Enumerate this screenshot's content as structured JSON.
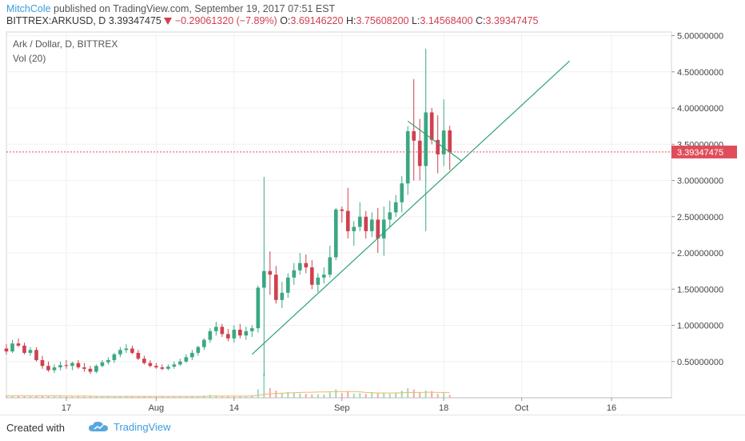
{
  "header": {
    "author": "MitchCole",
    "published_text": " published on TradingView.com, September 19, 2017 07:51 EST"
  },
  "ohlc_bar": {
    "symbol": "BITTREX:ARKUSD, D",
    "last": "3.39347475",
    "change_icon": "down-triangle-icon",
    "change": "−0.29061320 (−7.89%)",
    "o_label": "O:",
    "o": "3.69146220",
    "h_label": "H:",
    "h": "3.75608200",
    "l_label": "L:",
    "l": "3.14568400",
    "c_label": "C:",
    "c": "3.39347475"
  },
  "legend": {
    "title": "Ark / Dollar, D, BITTREX",
    "volume": "Vol (20)"
  },
  "footer": {
    "created_with": "Created with",
    "brand": "TradingView",
    "brand_icon": "tradingview-cloud-icon"
  },
  "colors": {
    "up": "#3aa882",
    "down": "#d0404f",
    "trend": "#2ea07a",
    "price_line": "#e04d5a",
    "vol_ma": "#f0b860",
    "grid": "#f0f0f0"
  },
  "chart_data": {
    "type": "candlestick",
    "title": "Ark / Dollar, D, BITTREX",
    "ylim": [
      0.0,
      5.05
    ],
    "yticks": [
      "5.00000000",
      "4.50000000",
      "4.00000000",
      "3.50000000",
      "3.00000000",
      "2.50000000",
      "2.00000000",
      "1.50000000",
      "1.00000000",
      "0.50000000"
    ],
    "ytick_values": [
      5.0,
      4.5,
      4.0,
      3.5,
      3.0,
      2.5,
      2.0,
      1.5,
      1.0,
      0.5
    ],
    "xticks": [
      {
        "label": "17",
        "date": "2017-07-17"
      },
      {
        "label": "Aug",
        "date": "2017-08-01"
      },
      {
        "label": "14",
        "date": "2017-08-14"
      },
      {
        "label": "Sep",
        "date": "2017-09-01"
      },
      {
        "label": "18",
        "date": "2017-09-18"
      },
      {
        "label": "Oct",
        "date": "2017-10-01"
      },
      {
        "label": "16",
        "date": "2017-10-16"
      }
    ],
    "x_range": [
      "2017-07-07",
      "2017-10-26"
    ],
    "last_price": 3.39347475,
    "last_price_label": "3.39347475",
    "candles": [
      {
        "d": "2017-07-07",
        "o": 0.68,
        "h": 0.74,
        "l": 0.6,
        "c": 0.64
      },
      {
        "d": "2017-07-08",
        "o": 0.64,
        "h": 0.8,
        "l": 0.62,
        "c": 0.75
      },
      {
        "d": "2017-07-09",
        "o": 0.75,
        "h": 0.82,
        "l": 0.7,
        "c": 0.72
      },
      {
        "d": "2017-07-10",
        "o": 0.72,
        "h": 0.76,
        "l": 0.6,
        "c": 0.62
      },
      {
        "d": "2017-07-11",
        "o": 0.62,
        "h": 0.7,
        "l": 0.58,
        "c": 0.66
      },
      {
        "d": "2017-07-12",
        "o": 0.66,
        "h": 0.7,
        "l": 0.5,
        "c": 0.52
      },
      {
        "d": "2017-07-13",
        "o": 0.52,
        "h": 0.58,
        "l": 0.4,
        "c": 0.44
      },
      {
        "d": "2017-07-14",
        "o": 0.44,
        "h": 0.5,
        "l": 0.36,
        "c": 0.38
      },
      {
        "d": "2017-07-15",
        "o": 0.38,
        "h": 0.46,
        "l": 0.34,
        "c": 0.42
      },
      {
        "d": "2017-07-16",
        "o": 0.42,
        "h": 0.5,
        "l": 0.38,
        "c": 0.45
      },
      {
        "d": "2017-07-17",
        "o": 0.45,
        "h": 0.52,
        "l": 0.4,
        "c": 0.44
      },
      {
        "d": "2017-07-18",
        "o": 0.44,
        "h": 0.5,
        "l": 0.38,
        "c": 0.48
      },
      {
        "d": "2017-07-19",
        "o": 0.48,
        "h": 0.52,
        "l": 0.4,
        "c": 0.42
      },
      {
        "d": "2017-07-20",
        "o": 0.42,
        "h": 0.48,
        "l": 0.36,
        "c": 0.4
      },
      {
        "d": "2017-07-21",
        "o": 0.4,
        "h": 0.44,
        "l": 0.33,
        "c": 0.36
      },
      {
        "d": "2017-07-22",
        "o": 0.36,
        "h": 0.46,
        "l": 0.34,
        "c": 0.44
      },
      {
        "d": "2017-07-23",
        "o": 0.44,
        "h": 0.52,
        "l": 0.42,
        "c": 0.49
      },
      {
        "d": "2017-07-24",
        "o": 0.49,
        "h": 0.56,
        "l": 0.46,
        "c": 0.52
      },
      {
        "d": "2017-07-25",
        "o": 0.52,
        "h": 0.62,
        "l": 0.48,
        "c": 0.6
      },
      {
        "d": "2017-07-26",
        "o": 0.6,
        "h": 0.7,
        "l": 0.56,
        "c": 0.66
      },
      {
        "d": "2017-07-27",
        "o": 0.66,
        "h": 0.74,
        "l": 0.62,
        "c": 0.68
      },
      {
        "d": "2017-07-28",
        "o": 0.68,
        "h": 0.72,
        "l": 0.6,
        "c": 0.62
      },
      {
        "d": "2017-07-29",
        "o": 0.62,
        "h": 0.66,
        "l": 0.52,
        "c": 0.54
      },
      {
        "d": "2017-07-30",
        "o": 0.54,
        "h": 0.58,
        "l": 0.46,
        "c": 0.48
      },
      {
        "d": "2017-07-31",
        "o": 0.48,
        "h": 0.52,
        "l": 0.42,
        "c": 0.44
      },
      {
        "d": "2017-08-01",
        "o": 0.44,
        "h": 0.48,
        "l": 0.4,
        "c": 0.42
      },
      {
        "d": "2017-08-02",
        "o": 0.42,
        "h": 0.46,
        "l": 0.38,
        "c": 0.4
      },
      {
        "d": "2017-08-03",
        "o": 0.4,
        "h": 0.46,
        "l": 0.38,
        "c": 0.43
      },
      {
        "d": "2017-08-04",
        "o": 0.43,
        "h": 0.5,
        "l": 0.4,
        "c": 0.46
      },
      {
        "d": "2017-08-05",
        "o": 0.46,
        "h": 0.54,
        "l": 0.44,
        "c": 0.5
      },
      {
        "d": "2017-08-06",
        "o": 0.5,
        "h": 0.6,
        "l": 0.48,
        "c": 0.56
      },
      {
        "d": "2017-08-07",
        "o": 0.56,
        "h": 0.66,
        "l": 0.52,
        "c": 0.62
      },
      {
        "d": "2017-08-08",
        "o": 0.62,
        "h": 0.72,
        "l": 0.58,
        "c": 0.7
      },
      {
        "d": "2017-08-09",
        "o": 0.7,
        "h": 0.82,
        "l": 0.66,
        "c": 0.8
      },
      {
        "d": "2017-08-10",
        "o": 0.8,
        "h": 0.96,
        "l": 0.76,
        "c": 0.92
      },
      {
        "d": "2017-08-11",
        "o": 0.92,
        "h": 1.05,
        "l": 0.86,
        "c": 0.98
      },
      {
        "d": "2017-08-12",
        "o": 0.98,
        "h": 1.02,
        "l": 0.84,
        "c": 0.88
      },
      {
        "d": "2017-08-13",
        "o": 0.88,
        "h": 0.95,
        "l": 0.78,
        "c": 0.82
      },
      {
        "d": "2017-08-14",
        "o": 0.82,
        "h": 1.0,
        "l": 0.76,
        "c": 0.94
      },
      {
        "d": "2017-08-15",
        "o": 0.94,
        "h": 1.02,
        "l": 0.82,
        "c": 0.86
      },
      {
        "d": "2017-08-16",
        "o": 0.86,
        "h": 0.98,
        "l": 0.8,
        "c": 0.92
      },
      {
        "d": "2017-08-17",
        "o": 0.92,
        "h": 1.0,
        "l": 0.84,
        "c": 0.96
      },
      {
        "d": "2017-08-18",
        "o": 0.96,
        "h": 1.55,
        "l": 0.9,
        "c": 1.52
      },
      {
        "d": "2017-08-19",
        "o": 1.52,
        "h": 3.05,
        "l": 0.3,
        "c": 1.75
      },
      {
        "d": "2017-08-20",
        "o": 1.75,
        "h": 2.02,
        "l": 1.42,
        "c": 1.7
      },
      {
        "d": "2017-08-21",
        "o": 1.7,
        "h": 1.82,
        "l": 1.3,
        "c": 1.35
      },
      {
        "d": "2017-08-22",
        "o": 1.35,
        "h": 1.6,
        "l": 1.24,
        "c": 1.45
      },
      {
        "d": "2017-08-23",
        "o": 1.45,
        "h": 1.72,
        "l": 1.38,
        "c": 1.66
      },
      {
        "d": "2017-08-24",
        "o": 1.66,
        "h": 1.86,
        "l": 1.56,
        "c": 1.76
      },
      {
        "d": "2017-08-25",
        "o": 1.76,
        "h": 2.0,
        "l": 1.7,
        "c": 1.86
      },
      {
        "d": "2017-08-26",
        "o": 1.86,
        "h": 1.98,
        "l": 1.72,
        "c": 1.8
      },
      {
        "d": "2017-08-27",
        "o": 1.8,
        "h": 1.9,
        "l": 1.5,
        "c": 1.56
      },
      {
        "d": "2017-08-28",
        "o": 1.56,
        "h": 1.72,
        "l": 1.46,
        "c": 1.66
      },
      {
        "d": "2017-08-29",
        "o": 1.66,
        "h": 1.8,
        "l": 1.58,
        "c": 1.7
      },
      {
        "d": "2017-08-30",
        "o": 1.7,
        "h": 2.1,
        "l": 1.66,
        "c": 1.94
      },
      {
        "d": "2017-08-31",
        "o": 1.94,
        "h": 2.62,
        "l": 1.9,
        "c": 2.6
      },
      {
        "d": "2017-09-01",
        "o": 2.6,
        "h": 2.64,
        "l": 2.42,
        "c": 2.58
      },
      {
        "d": "2017-09-02",
        "o": 2.58,
        "h": 2.9,
        "l": 2.2,
        "c": 2.3
      },
      {
        "d": "2017-09-03",
        "o": 2.3,
        "h": 2.44,
        "l": 2.1,
        "c": 2.36
      },
      {
        "d": "2017-09-04",
        "o": 2.36,
        "h": 2.7,
        "l": 2.3,
        "c": 2.5
      },
      {
        "d": "2017-09-05",
        "o": 2.5,
        "h": 2.58,
        "l": 2.2,
        "c": 2.3
      },
      {
        "d": "2017-09-06",
        "o": 2.3,
        "h": 2.56,
        "l": 2.22,
        "c": 2.46
      },
      {
        "d": "2017-09-07",
        "o": 2.46,
        "h": 2.62,
        "l": 2.0,
        "c": 2.2
      },
      {
        "d": "2017-09-08",
        "o": 2.2,
        "h": 2.64,
        "l": 1.96,
        "c": 2.46
      },
      {
        "d": "2017-09-09",
        "o": 2.46,
        "h": 2.72,
        "l": 2.36,
        "c": 2.56
      },
      {
        "d": "2017-09-10",
        "o": 2.56,
        "h": 2.8,
        "l": 2.5,
        "c": 2.7
      },
      {
        "d": "2017-09-11",
        "o": 2.7,
        "h": 3.06,
        "l": 2.56,
        "c": 2.96
      },
      {
        "d": "2017-09-12",
        "o": 2.96,
        "h": 3.75,
        "l": 2.8,
        "c": 3.68
      },
      {
        "d": "2017-09-13",
        "o": 3.68,
        "h": 4.4,
        "l": 3.0,
        "c": 3.55
      },
      {
        "d": "2017-09-14",
        "o": 3.55,
        "h": 3.85,
        "l": 3.0,
        "c": 3.2
      },
      {
        "d": "2017-09-15",
        "o": 3.2,
        "h": 4.82,
        "l": 2.3,
        "c": 3.94
      },
      {
        "d": "2017-09-16",
        "o": 3.94,
        "h": 4.0,
        "l": 3.5,
        "c": 3.56
      },
      {
        "d": "2017-09-17",
        "o": 3.56,
        "h": 3.9,
        "l": 3.1,
        "c": 3.36
      },
      {
        "d": "2017-09-18",
        "o": 3.36,
        "h": 4.12,
        "l": 3.2,
        "c": 3.69
      },
      {
        "d": "2017-09-19",
        "o": 3.6914622,
        "h": 3.756082,
        "l": 3.145684,
        "c": 3.39347475
      }
    ],
    "volume_relative": [
      0.08,
      0.07,
      0.1,
      0.08,
      0.07,
      0.09,
      0.1,
      0.08,
      0.06,
      0.07,
      0.05,
      0.06,
      0.07,
      0.05,
      0.06,
      0.05,
      0.07,
      0.08,
      0.06,
      0.07,
      0.08,
      0.06,
      0.05,
      0.06,
      0.05,
      0.04,
      0.05,
      0.04,
      0.05,
      0.06,
      0.05,
      0.06,
      0.07,
      0.09,
      0.12,
      0.1,
      0.08,
      0.06,
      0.08,
      0.07,
      0.06,
      0.1,
      0.35,
      1.0,
      0.4,
      0.3,
      0.2,
      0.25,
      0.22,
      0.18,
      0.16,
      0.14,
      0.15,
      0.14,
      0.22,
      0.35,
      0.2,
      0.28,
      0.18,
      0.2,
      0.16,
      0.24,
      0.18,
      0.2,
      0.17,
      0.22,
      0.3,
      0.4,
      0.35,
      0.22,
      0.3,
      0.28,
      0.16,
      0.2,
      0.12
    ],
    "volume_ma_relative": [
      0.08,
      0.08,
      0.08,
      0.08,
      0.08,
      0.08,
      0.08,
      0.08,
      0.08,
      0.08,
      0.07,
      0.07,
      0.07,
      0.07,
      0.07,
      0.06,
      0.06,
      0.06,
      0.06,
      0.06,
      0.06,
      0.06,
      0.06,
      0.06,
      0.06,
      0.06,
      0.06,
      0.06,
      0.06,
      0.06,
      0.06,
      0.06,
      0.06,
      0.06,
      0.07,
      0.07,
      0.07,
      0.07,
      0.07,
      0.07,
      0.07,
      0.08,
      0.1,
      0.14,
      0.16,
      0.18,
      0.19,
      0.2,
      0.21,
      0.22,
      0.23,
      0.23,
      0.24,
      0.24,
      0.25,
      0.26,
      0.26,
      0.26,
      0.26,
      0.25,
      0.22,
      0.21,
      0.2,
      0.2,
      0.2,
      0.2,
      0.21,
      0.22,
      0.22,
      0.22,
      0.23,
      0.23,
      0.22,
      0.22,
      0.22
    ],
    "trendlines": [
      {
        "from": {
          "d": "2017-08-17",
          "y": 0.6
        },
        "to": {
          "d": "2017-10-09",
          "y": 4.65
        }
      },
      {
        "from": {
          "d": "2017-09-12",
          "y": 3.82
        },
        "to": {
          "d": "2017-09-21",
          "y": 3.27
        }
      }
    ]
  }
}
